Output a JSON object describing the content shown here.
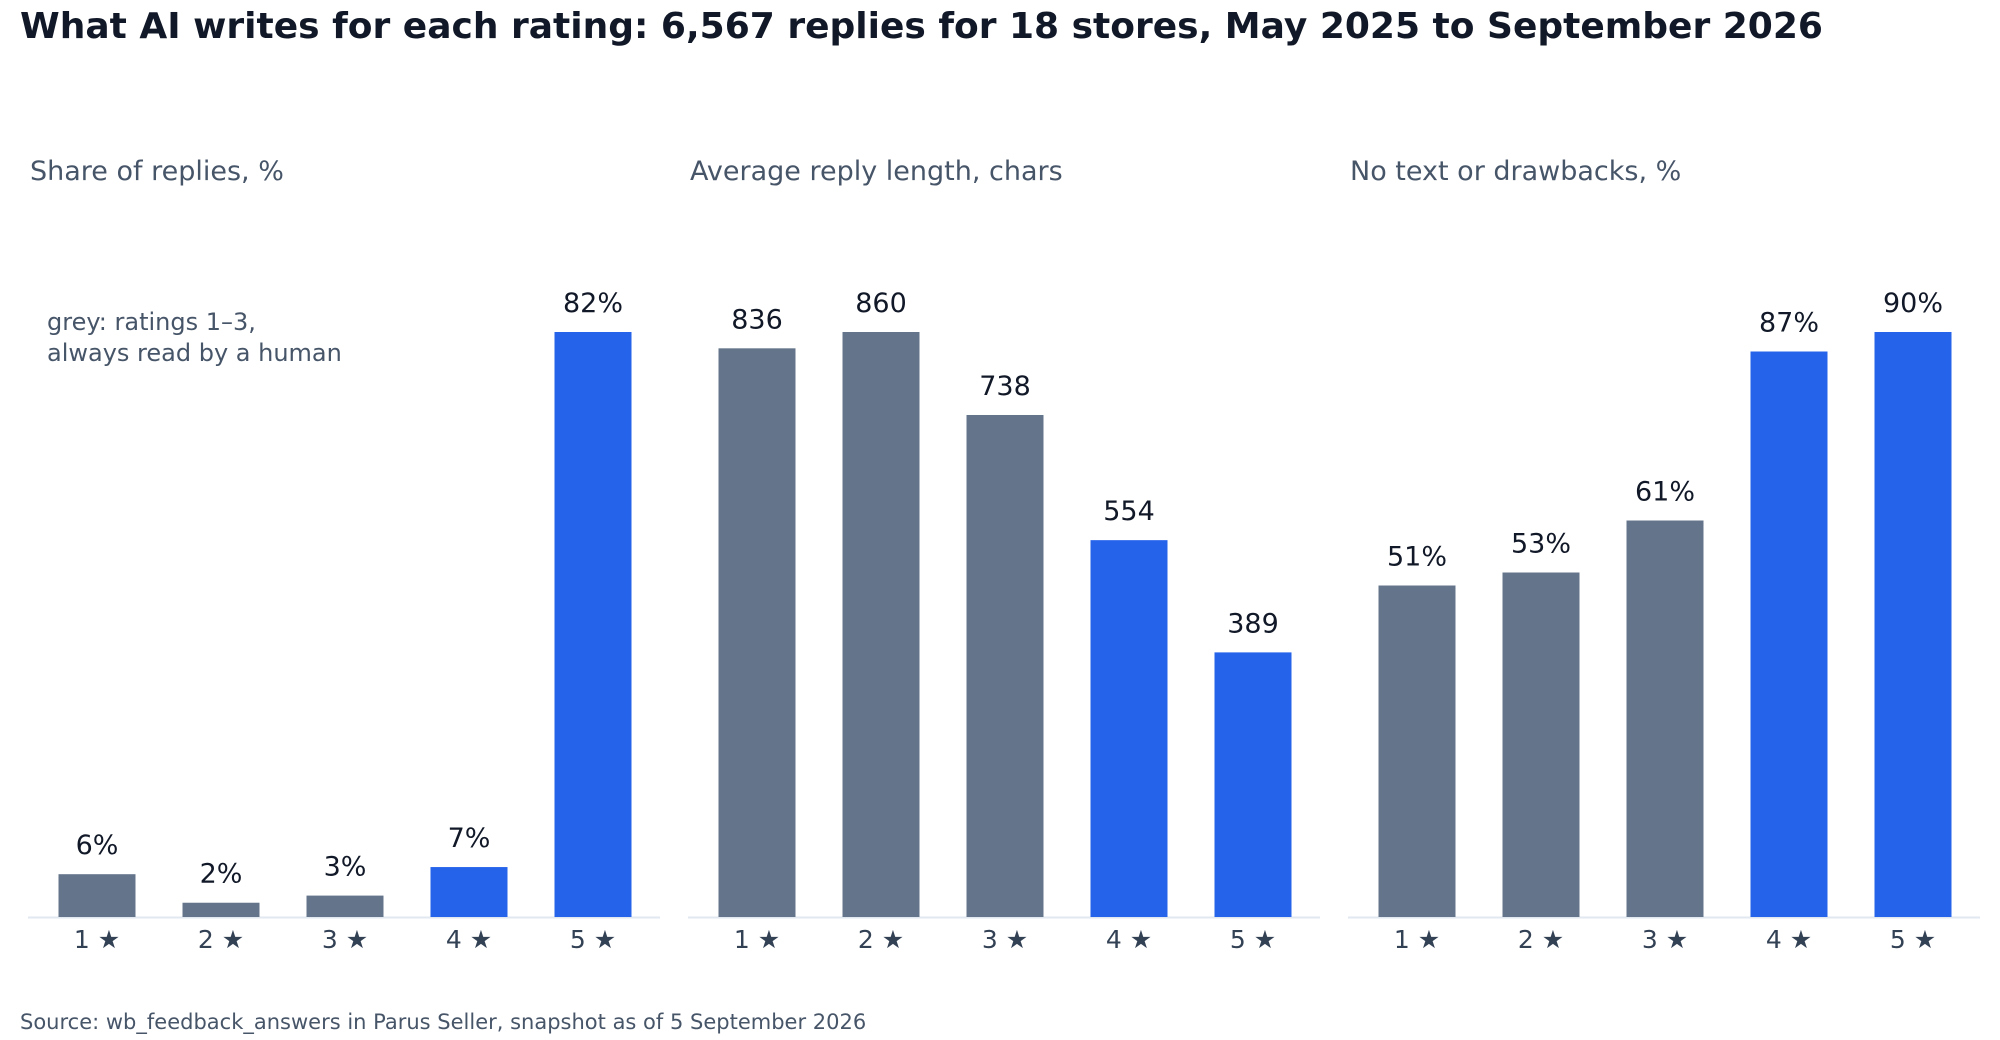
{
  "title": "What AI writes for each rating: 6,567 replies for 18 stores, May 2025 to September 2026",
  "source": "Source: wb_feedback_answers in Parus Seller, snapshot as of 5 September 2026",
  "colors": {
    "human_read": "#64748b",
    "ai_only": "#2563eb",
    "title": "#111827",
    "subtitle": "#475569",
    "value_label": "#111827",
    "tick_label": "#334155",
    "axis_line": "#e2e8f0"
  },
  "chart_data": [
    {
      "type": "bar",
      "title": "Share of replies, %",
      "categories": [
        "1 ★",
        "2 ★",
        "3 ★",
        "4 ★",
        "5 ★"
      ],
      "values": [
        6,
        2,
        3,
        7,
        82
      ],
      "value_labels": [
        "6%",
        "2%",
        "3%",
        "7%",
        "82%"
      ],
      "highlight": [
        false,
        false,
        false,
        true,
        true
      ],
      "ylim": [
        0,
        82
      ],
      "grid": false,
      "annotation": [
        "grey: ratings 1–3,",
        "always read by a human"
      ]
    },
    {
      "type": "bar",
      "title": "Average reply length, chars",
      "categories": [
        "1 ★",
        "2 ★",
        "3 ★",
        "4 ★",
        "5 ★"
      ],
      "values": [
        836,
        860,
        738,
        554,
        389
      ],
      "value_labels": [
        "836",
        "860",
        "738",
        "554",
        "389"
      ],
      "highlight": [
        false,
        false,
        false,
        true,
        true
      ],
      "ylim": [
        0,
        860
      ],
      "grid": false
    },
    {
      "type": "bar",
      "title": "No text or drawbacks, %",
      "categories": [
        "1 ★",
        "2 ★",
        "3 ★",
        "4 ★",
        "5 ★"
      ],
      "values": [
        51,
        53,
        61,
        87,
        90
      ],
      "value_labels": [
        "51%",
        "53%",
        "61%",
        "87%",
        "90%"
      ],
      "highlight": [
        false,
        false,
        false,
        true,
        true
      ],
      "ylim": [
        0,
        90
      ],
      "grid": false
    }
  ]
}
